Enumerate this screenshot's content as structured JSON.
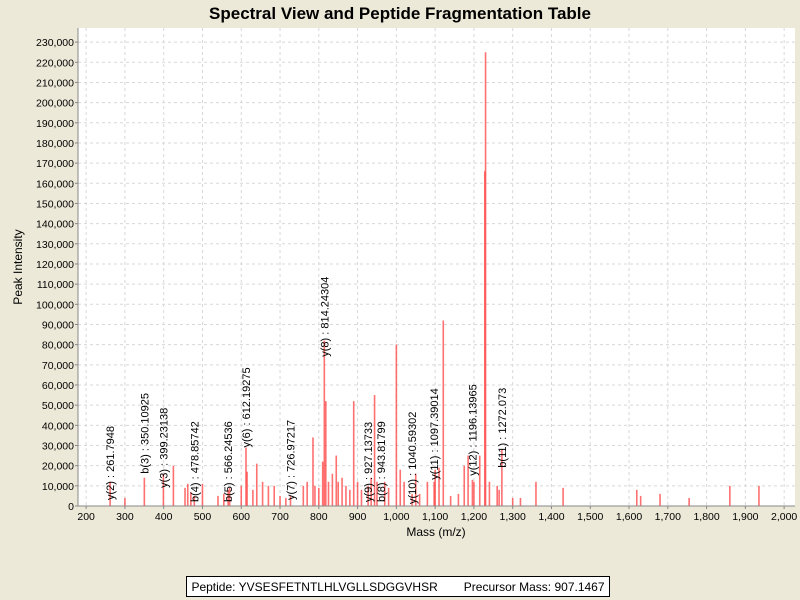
{
  "chart_data": {
    "type": "bar",
    "title": "Spectral View and Peptide Fragmentation Table",
    "xlabel": "Mass (m/z)",
    "ylabel": "Peak Intensity",
    "xlim": [
      179,
      2028
    ],
    "ylim": [
      0,
      237000
    ],
    "xticks": [
      200,
      300,
      400,
      500,
      600,
      700,
      800,
      900,
      1000,
      1100,
      1200,
      1300,
      1400,
      1500,
      1600,
      1700,
      1800,
      1900,
      2000
    ],
    "yticks": [
      0,
      10000,
      20000,
      30000,
      40000,
      50000,
      60000,
      70000,
      80000,
      90000,
      100000,
      110000,
      120000,
      130000,
      140000,
      150000,
      160000,
      170000,
      180000,
      190000,
      200000,
      210000,
      220000,
      230000
    ],
    "grid": true,
    "bar_color": "#ff4040",
    "peaks": [
      [
        261.8,
        12000
      ],
      [
        300,
        4000
      ],
      [
        350.1,
        14000
      ],
      [
        399.2,
        16000
      ],
      [
        425,
        20000
      ],
      [
        455,
        9000
      ],
      [
        462,
        11000
      ],
      [
        470,
        7000
      ],
      [
        478.9,
        5000
      ],
      [
        500,
        11000
      ],
      [
        540,
        5000
      ],
      [
        555,
        6000
      ],
      [
        566.2,
        8000
      ],
      [
        570,
        9000
      ],
      [
        600,
        10000
      ],
      [
        612.2,
        29000
      ],
      [
        615,
        17000
      ],
      [
        630,
        8000
      ],
      [
        640,
        21000
      ],
      [
        655,
        12000
      ],
      [
        670,
        10000
      ],
      [
        685,
        10000
      ],
      [
        700,
        5000
      ],
      [
        715,
        4000
      ],
      [
        727,
        5000
      ],
      [
        760,
        10000
      ],
      [
        770,
        12000
      ],
      [
        785,
        34000
      ],
      [
        790,
        10000
      ],
      [
        800,
        9000
      ],
      [
        810,
        22000
      ],
      [
        814.2,
        82000
      ],
      [
        818,
        52000
      ],
      [
        825,
        12000
      ],
      [
        835,
        16000
      ],
      [
        845,
        25000
      ],
      [
        850,
        12000
      ],
      [
        860,
        14000
      ],
      [
        870,
        10000
      ],
      [
        880,
        8000
      ],
      [
        890,
        52000
      ],
      [
        900,
        12000
      ],
      [
        910,
        8000
      ],
      [
        927.1,
        10000
      ],
      [
        935,
        14000
      ],
      [
        943.8,
        55000
      ],
      [
        950,
        12000
      ],
      [
        970,
        12000
      ],
      [
        980,
        9000
      ],
      [
        1000,
        80000
      ],
      [
        1010,
        18000
      ],
      [
        1020,
        12000
      ],
      [
        1040.6,
        6000
      ],
      [
        1050,
        16000
      ],
      [
        1060,
        6000
      ],
      [
        1080,
        12000
      ],
      [
        1097.4,
        12000
      ],
      [
        1100,
        18000
      ],
      [
        1110,
        19000
      ],
      [
        1121,
        92000
      ],
      [
        1140,
        5000
      ],
      [
        1160,
        6000
      ],
      [
        1175,
        20000
      ],
      [
        1185,
        25000
      ],
      [
        1196.1,
        13000
      ],
      [
        1200,
        12000
      ],
      [
        1215,
        25000
      ],
      [
        1228,
        166000
      ],
      [
        1230,
        225000
      ],
      [
        1240,
        12000
      ],
      [
        1260,
        10000
      ],
      [
        1265,
        8000
      ],
      [
        1272.1,
        28000
      ],
      [
        1300,
        4000
      ],
      [
        1320,
        4000
      ],
      [
        1360,
        12000
      ],
      [
        1430,
        9000
      ],
      [
        1620,
        8000
      ],
      [
        1630,
        5000
      ],
      [
        1680,
        6000
      ],
      [
        1755,
        4000
      ],
      [
        1860,
        10000
      ],
      [
        1935,
        10000
      ]
    ],
    "annotations": [
      {
        "text": "y(2) : 261.7948",
        "mass": 261.7948,
        "at": 2000
      },
      {
        "text": "b(3) : 350.10925",
        "mass": 350.10925,
        "at": 15000
      },
      {
        "text": "y(3) : 399.23138",
        "mass": 399.23138,
        "at": 8000
      },
      {
        "text": "b(4) : 478.85742",
        "mass": 478.85742,
        "at": 1000
      },
      {
        "text": "b(5) : 566.24536",
        "mass": 566.24536,
        "at": 1000
      },
      {
        "text": "y(6) : 612.19275",
        "mass": 612.19275,
        "at": 28000
      },
      {
        "text": "y(7) : 726.97217",
        "mass": 726.97217,
        "at": 2000
      },
      {
        "text": "y(8) : 814.24304",
        "mass": 814.24304,
        "at": 73000
      },
      {
        "text": "y(9) : 927.13733",
        "mass": 927.13733,
        "at": 1000
      },
      {
        "text": "b(8) : 943.81799",
        "mass": 943.81799,
        "at": 1000
      },
      {
        "text": "y(10) : 1040.59302",
        "mass": 1040.59302,
        "at": 0
      },
      {
        "text": "y(11) : 1097.39014",
        "mass": 1097.39014,
        "at": 12000
      },
      {
        "text": "y(12) : 1196.13965",
        "mass": 1196.13965,
        "at": 14000
      },
      {
        "text": "b(11) : 1272.073",
        "mass": 1272.073,
        "at": 18000
      }
    ]
  },
  "legend": {
    "peptide": "Peptide: YVSESFETNTLHLVGLLSDGGVHSR",
    "precursor": "Precursor Mass: 907.1467"
  }
}
